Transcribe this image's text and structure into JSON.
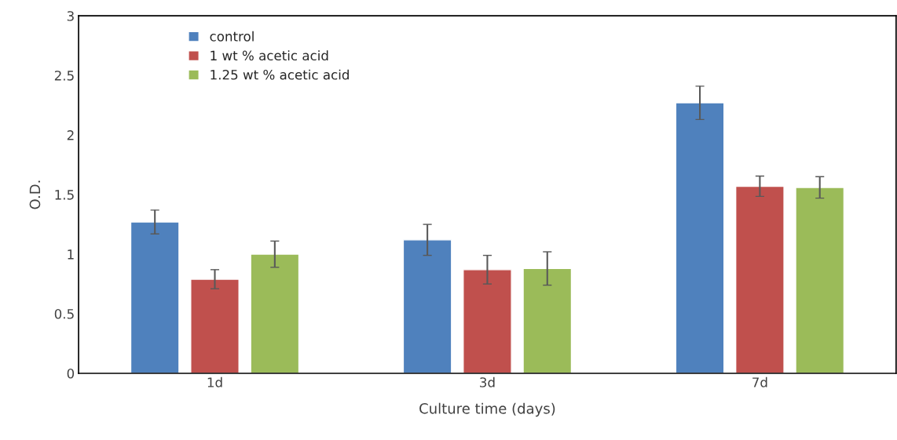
{
  "chart_data": {
    "type": "bar",
    "xlabel": "Culture time (days)",
    "ylabel": "O.D.",
    "categories": [
      "1d",
      "3d",
      "7d"
    ],
    "series": [
      {
        "name": "control",
        "color": "#4f81bd",
        "values": [
          1.27,
          1.12,
          2.27
        ],
        "errors": [
          0.1,
          0.13,
          0.14
        ]
      },
      {
        "name": "1 wt % acetic acid",
        "color": "#c0504d",
        "values": [
          0.79,
          0.87,
          1.57
        ],
        "errors": [
          0.08,
          0.12,
          0.085
        ]
      },
      {
        "name": "1.25 wt % acetic acid",
        "color": "#9bbb59",
        "values": [
          1.0,
          0.88,
          1.56
        ],
        "errors": [
          0.11,
          0.14,
          0.09
        ]
      }
    ],
    "ylim": [
      0,
      3
    ],
    "yticks": [
      0,
      0.5,
      1,
      1.5,
      2,
      2.5,
      3
    ],
    "grid": false,
    "legend": "top left"
  }
}
